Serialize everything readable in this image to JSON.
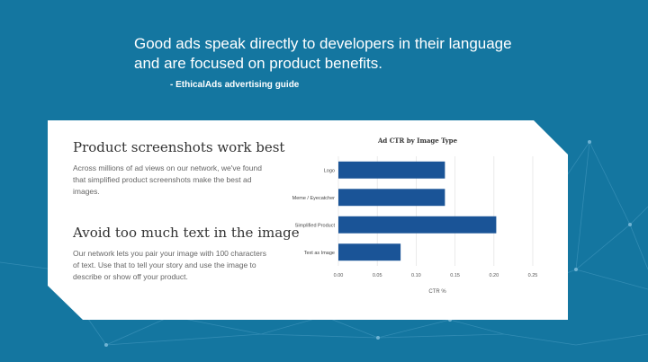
{
  "quote": {
    "text": "Good ads speak directly to developers in their language and are focused on product benefits.",
    "attribution": "- EthicalAds advertising guide"
  },
  "card": {
    "sections": [
      {
        "heading": "Product screenshots work best",
        "body": "Across millions of ad views on our network, we've found that simplified product screenshots make the best ad images."
      },
      {
        "heading": "Avoid too much text in the image",
        "body": "Our network lets you pair your image with 100 characters of text. Use that to tell your story and use the image to describe or show off your product."
      }
    ]
  },
  "colors": {
    "background": "#1476a0",
    "card": "#ffffff",
    "bar": "#1a5497"
  },
  "chart_data": {
    "type": "bar",
    "orientation": "horizontal",
    "title": "Ad CTR by Image Type",
    "xlabel": "CTR %",
    "ylabel": "",
    "categories": [
      "Logo",
      "Meme / Eyecatcher",
      "Simplified Product",
      "Text as Image"
    ],
    "values": [
      0.137,
      0.137,
      0.203,
      0.08
    ],
    "xlim": [
      0,
      0.25
    ],
    "xticks": [
      "0.00",
      "0.05",
      "0.10",
      "0.15",
      "0.20",
      "0.25"
    ],
    "grid": true
  }
}
